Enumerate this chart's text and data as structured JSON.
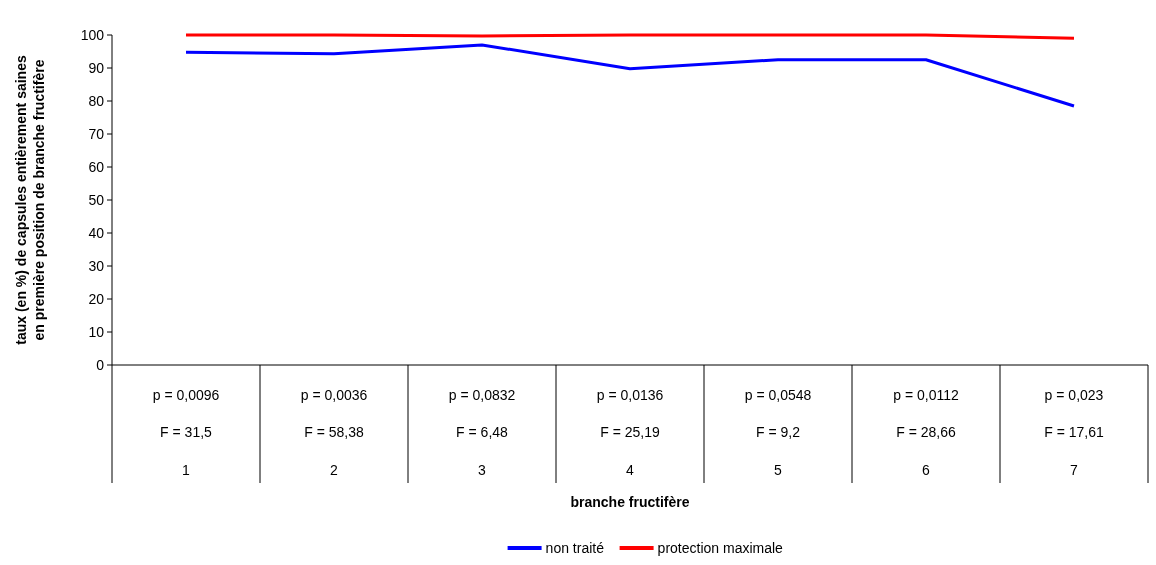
{
  "chart_data": {
    "type": "line",
    "xlabel": "branche fructifère",
    "ylabel": "taux (en %) de capsules entièrement saines\nen première position de branche fructifère",
    "categories": [
      "1",
      "2",
      "3",
      "4",
      "5",
      "6",
      "7"
    ],
    "series": [
      {
        "name": "non traité",
        "color": "#0000ff",
        "values": [
          94.8,
          94.3,
          97,
          89.8,
          92.5,
          92.5,
          78.5
        ]
      },
      {
        "name": "protection maximale",
        "color": "#ff0000",
        "values": [
          100,
          100,
          99.7,
          100,
          100,
          100,
          99
        ]
      }
    ],
    "ylim": [
      0,
      100
    ],
    "yticks": [
      0,
      10,
      20,
      30,
      40,
      50,
      60,
      70,
      80,
      90,
      100
    ],
    "grid": false,
    "legend": "bottom",
    "marker": "none",
    "line_style": "solid",
    "annotations": [
      "p = 0,0096",
      "F = 31,5",
      "p = 0,0036",
      "F = 58,38",
      "p = 0,0832",
      "F = 6,48",
      "p = 0,0136",
      "F = 25,19",
      "p = 0,0548",
      "F = 9,2",
      "p = 0,0112",
      "F = 28,66",
      "p = 0,023",
      "F = 17,61"
    ]
  }
}
